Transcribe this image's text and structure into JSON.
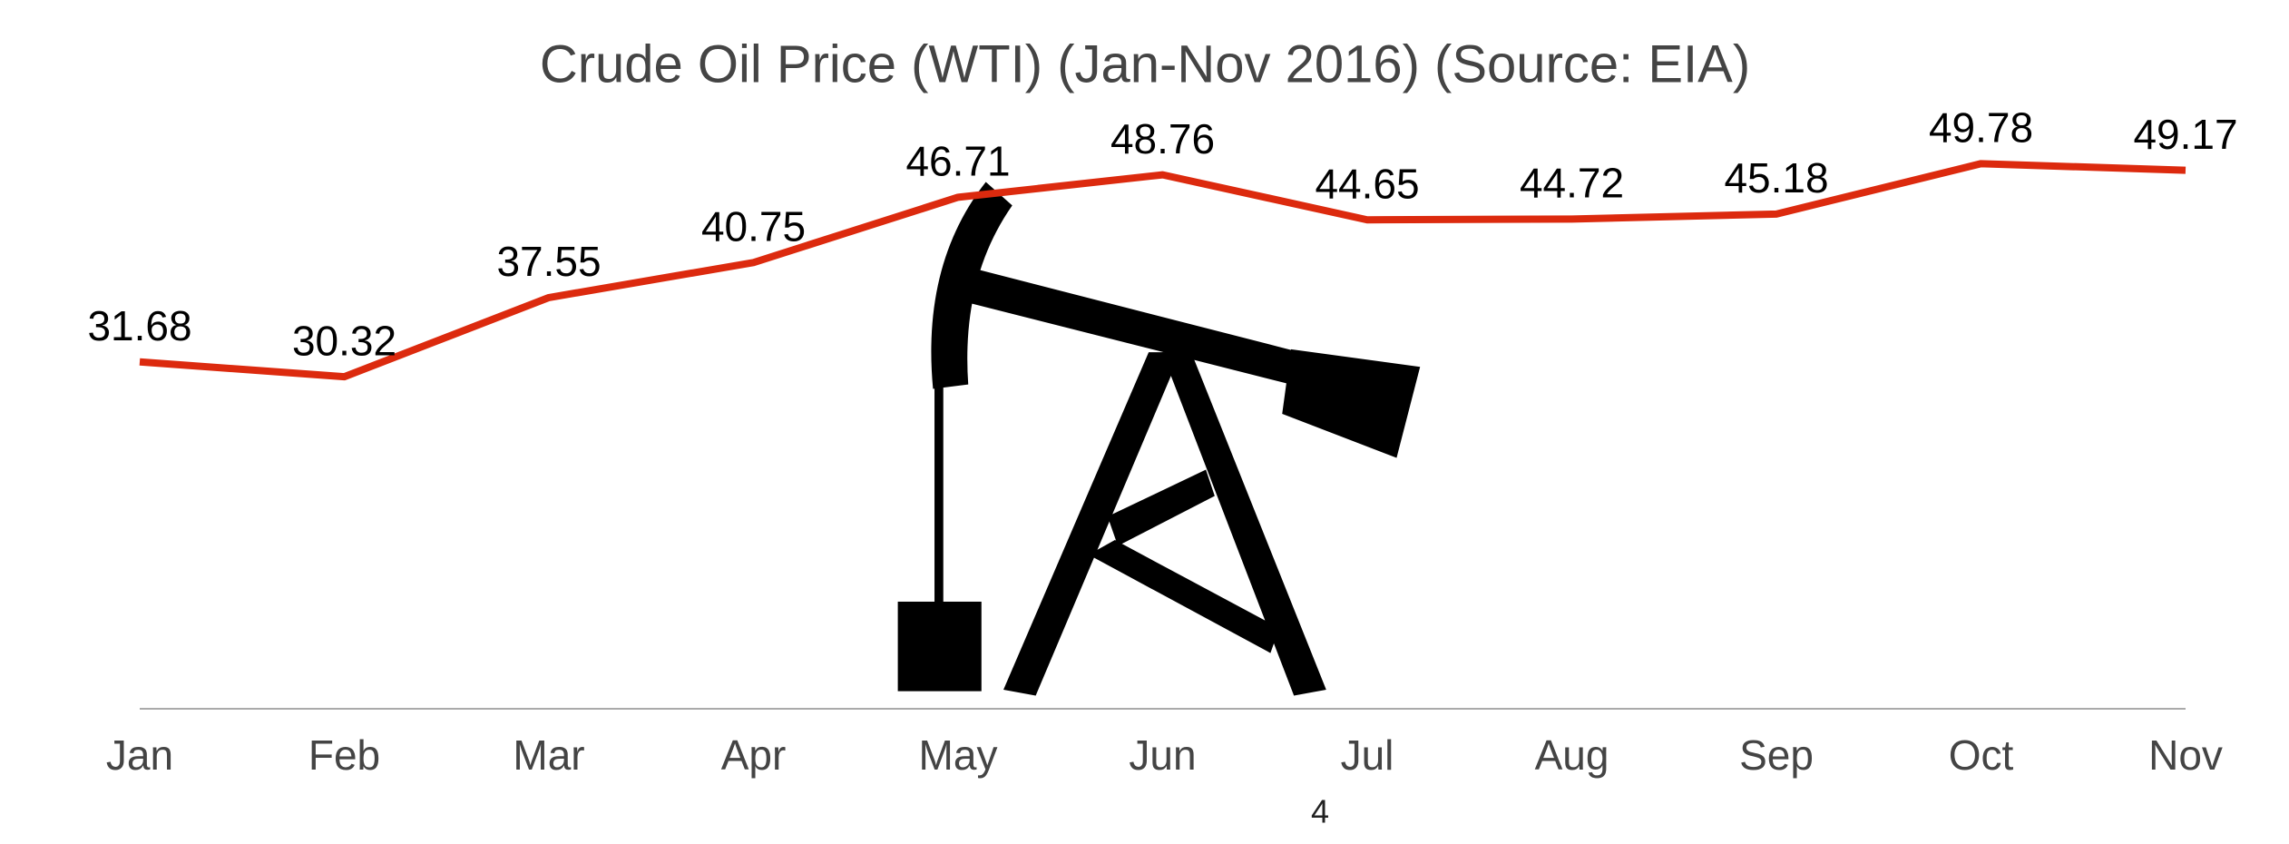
{
  "chart_data": {
    "type": "line",
    "title": "Crude Oil Price (WTI) (Jan-Nov 2016)  (Source: EIA)",
    "categories": [
      "Jan",
      "Feb",
      "Mar",
      "Apr",
      "May",
      "Jun",
      "Jul",
      "Aug",
      "Sep",
      "Oct",
      "Nov"
    ],
    "series": [
      {
        "name": "WTI",
        "color": "#dc2a0e",
        "values": [
          31.68,
          30.32,
          37.55,
          40.75,
          46.71,
          48.76,
          44.65,
          44.72,
          45.18,
          49.78,
          49.17
        ]
      }
    ],
    "ylim": [
      0,
      60
    ],
    "grid": false
  },
  "page_number": "4"
}
